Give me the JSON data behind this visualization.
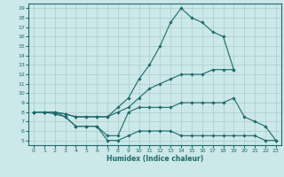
{
  "xlabel": "Humidex (Indice chaleur)",
  "bg_color": "#cce8e8",
  "grid_color": "#aacccc",
  "line_color": "#1a6b6b",
  "xlim": [
    -0.5,
    23.5
  ],
  "ylim": [
    4.5,
    19.5
  ],
  "yticks": [
    5,
    6,
    7,
    8,
    9,
    10,
    11,
    12,
    13,
    14,
    15,
    16,
    17,
    18,
    19
  ],
  "xticks": [
    0,
    1,
    2,
    3,
    4,
    5,
    6,
    7,
    8,
    9,
    10,
    11,
    12,
    13,
    14,
    15,
    16,
    17,
    18,
    19,
    20,
    21,
    22,
    23
  ],
  "series": [
    {
      "x": [
        0,
        1,
        2,
        3,
        4,
        5,
        6,
        7,
        8,
        9,
        10,
        11,
        12,
        13,
        14,
        15,
        16,
        17,
        18,
        19
      ],
      "y": [
        8.0,
        8.0,
        8.0,
        7.8,
        7.5,
        7.5,
        7.5,
        7.5,
        8.5,
        9.5,
        11.5,
        13.0,
        15.0,
        17.5,
        19.0,
        18.0,
        17.5,
        16.5,
        16.0,
        12.5
      ]
    },
    {
      "x": [
        0,
        1,
        2,
        3,
        4,
        5,
        6,
        7,
        8,
        9,
        10,
        11,
        12,
        13,
        14,
        15,
        16,
        17,
        18,
        19
      ],
      "y": [
        8.0,
        8.0,
        8.0,
        7.8,
        7.5,
        7.5,
        7.5,
        7.5,
        8.0,
        8.5,
        9.5,
        10.5,
        11.0,
        11.5,
        12.0,
        12.0,
        12.0,
        12.5,
        12.5,
        12.5
      ]
    },
    {
      "x": [
        0,
        1,
        2,
        3,
        4,
        5,
        6,
        7,
        8,
        9,
        10,
        11,
        12,
        13,
        14,
        15,
        16,
        17,
        18,
        19,
        20,
        21,
        22,
        23
      ],
      "y": [
        8.0,
        8.0,
        8.0,
        7.5,
        6.5,
        6.5,
        6.5,
        5.5,
        5.5,
        8.0,
        8.5,
        8.5,
        8.5,
        8.5,
        9.0,
        9.0,
        9.0,
        9.0,
        9.0,
        9.5,
        7.5,
        7.0,
        6.5,
        5.0
      ]
    },
    {
      "x": [
        0,
        1,
        2,
        3,
        4,
        5,
        6,
        7,
        8,
        9,
        10,
        11,
        12,
        13,
        14,
        15,
        16,
        17,
        18,
        19,
        20,
        21,
        22,
        23
      ],
      "y": [
        8.0,
        8.0,
        7.8,
        7.5,
        6.5,
        6.5,
        6.5,
        5.0,
        5.0,
        5.5,
        6.0,
        6.0,
        6.0,
        6.0,
        5.5,
        5.5,
        5.5,
        5.5,
        5.5,
        5.5,
        5.5,
        5.5,
        5.0,
        5.0
      ]
    }
  ]
}
